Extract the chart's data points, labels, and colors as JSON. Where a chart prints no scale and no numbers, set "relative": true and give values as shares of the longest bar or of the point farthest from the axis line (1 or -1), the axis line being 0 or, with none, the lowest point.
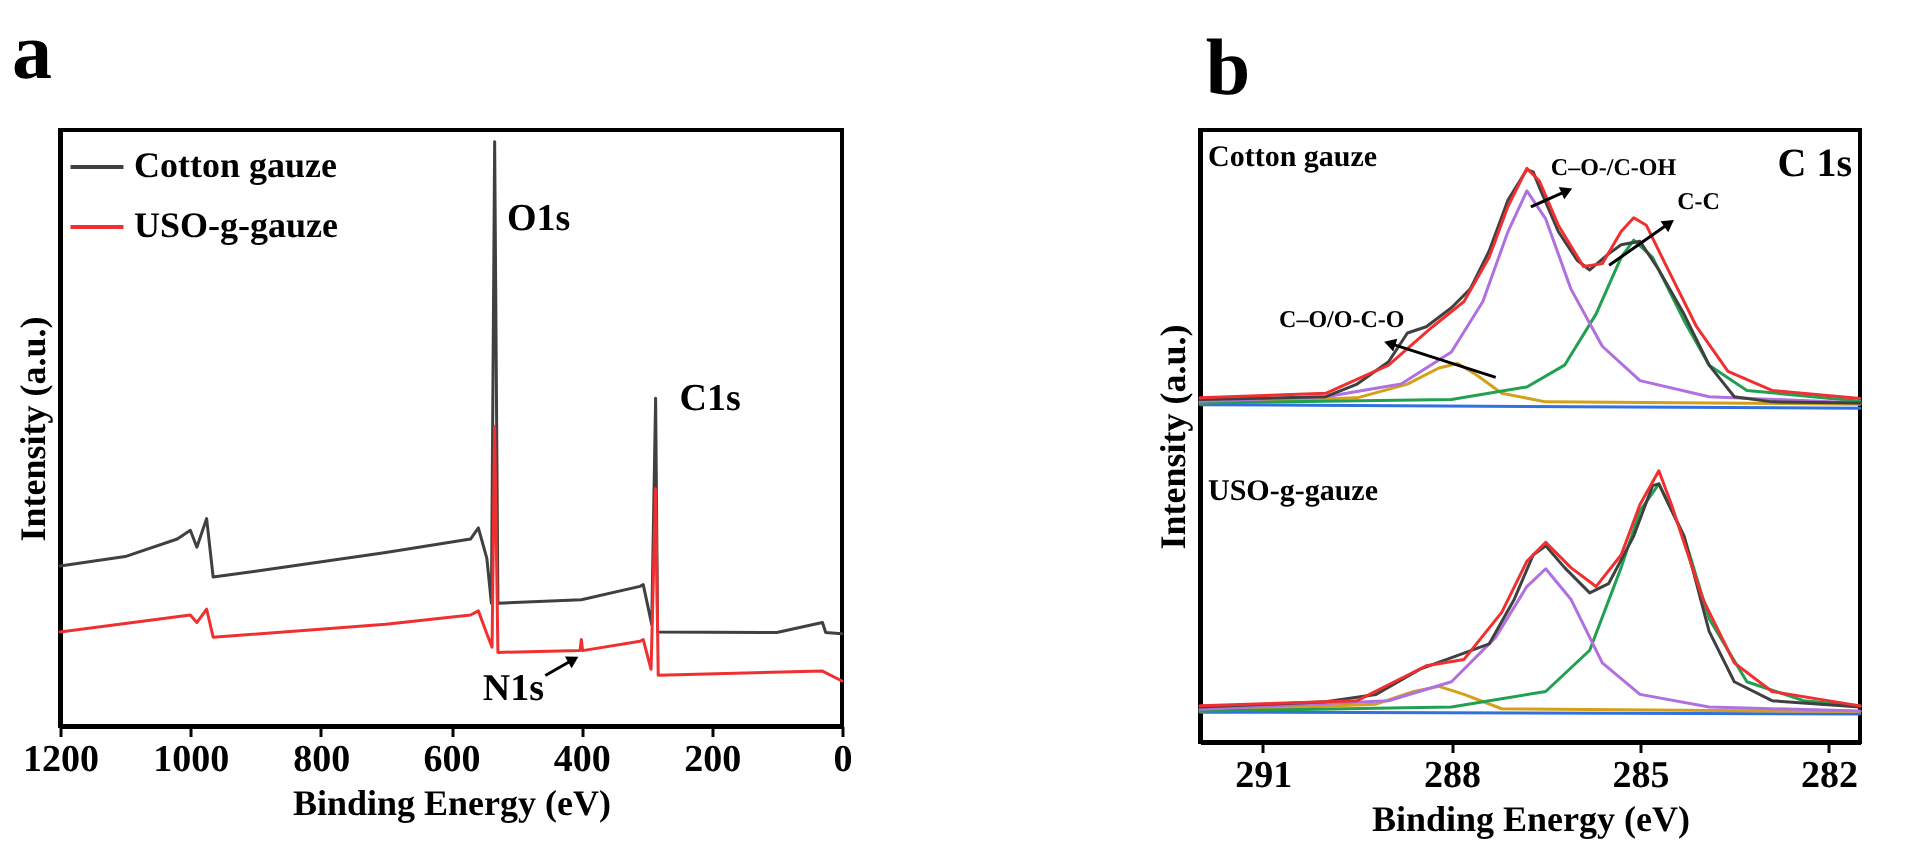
{
  "chart_data": [
    {
      "type": "line",
      "relative": true,
      "xlabel": "Binding Energy (eV)",
      "ylabel": "Intensity (a.u.)",
      "xlim": [
        1200,
        0
      ],
      "xticks": [
        1200,
        1000,
        800,
        600,
        400,
        200,
        0
      ],
      "legend": "top left",
      "annotations": [
        "a",
        {
          "text": "O1s",
          "x": 533,
          "y": 1.0
        },
        {
          "text": "C1s",
          "x": 286,
          "y": 0.561
        },
        {
          "text": "N1s",
          "x": 400,
          "y": 0.148
        }
      ],
      "series": [
        {
          "name": "Cotton gauze",
          "color": "#404040",
          "x": [
            1200,
            1100,
            1020,
            1000,
            990,
            975,
            965,
            900,
            700,
            570,
            558,
            545,
            538,
            533,
            528,
            400,
            310,
            305,
            292,
            286,
            283,
            100,
            30,
            25,
            0
          ],
          "values": [
            0.274,
            0.29,
            0.32,
            0.335,
            0.306,
            0.355,
            0.255,
            0.265,
            0.297,
            0.32,
            0.339,
            0.287,
            0.21,
            1.0,
            0.21,
            0.216,
            0.239,
            0.242,
            0.174,
            0.561,
            0.161,
            0.16,
            0.177,
            0.16,
            0.158
          ]
        },
        {
          "name": "USO-g-gauze",
          "color": "#f03030",
          "x": [
            1200,
            1000,
            990,
            975,
            965,
            700,
            570,
            558,
            545,
            537,
            533,
            528,
            402,
            400,
            398,
            310,
            305,
            293,
            286,
            282,
            30,
            0
          ],
          "values": [
            0.161,
            0.19,
            0.177,
            0.2,
            0.152,
            0.174,
            0.19,
            0.197,
            0.158,
            0.135,
            0.513,
            0.126,
            0.129,
            0.148,
            0.129,
            0.145,
            0.148,
            0.097,
            0.406,
            0.087,
            0.094,
            0.077
          ]
        }
      ]
    },
    {
      "type": "line",
      "relative": true,
      "xlabel": "Binding Energy (eV)",
      "ylabel": "Intensity (a.u.)",
      "xlim": [
        292,
        281.5
      ],
      "xticks": [
        291,
        288,
        285,
        282
      ],
      "annotations": [
        "b",
        "C 1s",
        "Cotton gauze",
        "USO-g-gauze",
        {
          "text": "C–O-/C-OH",
          "x": 286.8,
          "y": 0.961
        },
        {
          "text": "C-C",
          "x": 285.3,
          "y": 0.845
        },
        {
          "text": "C–O/O-C-O",
          "x": 287.9,
          "y": 0.66
        }
      ],
      "series": [
        {
          "color": "#3070e0",
          "x": [
            292,
            281.5
          ],
          "values": [
            0.588,
            0.582
          ]
        },
        {
          "color": "#d4a017",
          "x": [
            292,
            289.5,
            288.7,
            288.2,
            287.9,
            287.6,
            287.2,
            286.5,
            281.5
          ],
          "values": [
            0.591,
            0.6,
            0.624,
            0.652,
            0.66,
            0.64,
            0.608,
            0.593,
            0.589
          ]
        },
        {
          "color": "#20a050",
          "x": [
            292,
            288,
            286.8,
            286.2,
            285.7,
            285.3,
            285.1,
            284.8,
            284.3,
            283.9,
            283.3,
            281.5
          ],
          "values": [
            0.591,
            0.597,
            0.619,
            0.657,
            0.746,
            0.845,
            0.875,
            0.845,
            0.735,
            0.657,
            0.613,
            0.594
          ]
        },
        {
          "color": "#b070e0",
          "x": [
            292,
            290,
            288.8,
            288,
            287.5,
            287.1,
            286.8,
            286.5,
            286.1,
            285.6,
            285,
            283.9,
            281.5
          ],
          "values": [
            0.594,
            0.602,
            0.624,
            0.68,
            0.768,
            0.89,
            0.961,
            0.912,
            0.79,
            0.69,
            0.63,
            0.602,
            0.591
          ]
        },
        {
          "color": "#404040",
          "x": [
            292,
            290,
            289.5,
            289,
            288.7,
            288.4,
            288,
            287.7,
            287.4,
            287.1,
            286.8,
            286.7,
            286.6,
            286.3,
            286,
            285.8,
            285.5,
            285.3,
            285,
            284.7,
            284.3,
            283.9,
            283.5,
            282.9,
            281.5
          ],
          "values": [
            0.597,
            0.602,
            0.624,
            0.663,
            0.713,
            0.724,
            0.757,
            0.79,
            0.856,
            0.945,
            0.998,
            0.994,
            0.967,
            0.89,
            0.84,
            0.823,
            0.851,
            0.867,
            0.873,
            0.823,
            0.746,
            0.657,
            0.602,
            0.593,
            0.591
          ]
        },
        {
          "color": "#f03030",
          "x": [
            292,
            290,
            289,
            288.3,
            287.8,
            287.4,
            287.1,
            286.8,
            286.6,
            286.3,
            285.9,
            285.6,
            285.3,
            285.1,
            284.9,
            284.6,
            284.1,
            283.6,
            282.9,
            281.5
          ],
          "values": [
            0.6,
            0.608,
            0.657,
            0.724,
            0.768,
            0.845,
            0.934,
            1.0,
            0.978,
            0.901,
            0.829,
            0.834,
            0.89,
            0.914,
            0.901,
            0.834,
            0.724,
            0.646,
            0.613,
            0.599
          ]
        },
        {
          "color": "#3070e0",
          "x": [
            292,
            281.5
          ],
          "values": [
            0.052,
            0.049
          ]
        },
        {
          "color": "#d4a017",
          "x": [
            292,
            289.2,
            288.6,
            288.2,
            287.8,
            287.2,
            281.5
          ],
          "values": [
            0.054,
            0.066,
            0.088,
            0.097,
            0.083,
            0.058,
            0.053
          ]
        },
        {
          "color": "#20a050",
          "x": [
            292,
            288,
            286.5,
            285.8,
            285.3,
            285,
            284.7,
            284.3,
            283.9,
            283.3,
            282.4,
            281.5
          ],
          "values": [
            0.054,
            0.061,
            0.088,
            0.16,
            0.304,
            0.403,
            0.45,
            0.359,
            0.215,
            0.105,
            0.072,
            0.063
          ]
        },
        {
          "color": "#b070e0",
          "x": [
            292,
            289,
            288,
            287.3,
            286.8,
            286.5,
            286.1,
            285.6,
            285,
            283.9,
            281.5
          ],
          "values": [
            0.057,
            0.072,
            0.105,
            0.182,
            0.271,
            0.302,
            0.249,
            0.138,
            0.083,
            0.061,
            0.054
          ]
        },
        {
          "color": "#404040",
          "x": [
            292,
            290,
            289.2,
            288.5,
            287.8,
            287.4,
            287,
            286.7,
            286.5,
            286.2,
            285.8,
            285.5,
            285.1,
            284.8,
            284.7,
            284.3,
            283.9,
            283.5,
            282.9,
            281.5
          ],
          "values": [
            0.061,
            0.07,
            0.083,
            0.127,
            0.155,
            0.171,
            0.249,
            0.326,
            0.342,
            0.304,
            0.26,
            0.276,
            0.359,
            0.447,
            0.45,
            0.359,
            0.193,
            0.105,
            0.072,
            0.061
          ]
        },
        {
          "color": "#f03030",
          "x": [
            292,
            289.5,
            288.4,
            287.8,
            287.2,
            286.8,
            286.5,
            286.1,
            285.7,
            285.3,
            285,
            284.7,
            284.5,
            284,
            283.5,
            282.9,
            281.5
          ],
          "values": [
            0.063,
            0.072,
            0.133,
            0.144,
            0.226,
            0.315,
            0.348,
            0.304,
            0.271,
            0.326,
            0.414,
            0.473,
            0.414,
            0.249,
            0.138,
            0.088,
            0.063
          ]
        }
      ]
    }
  ]
}
